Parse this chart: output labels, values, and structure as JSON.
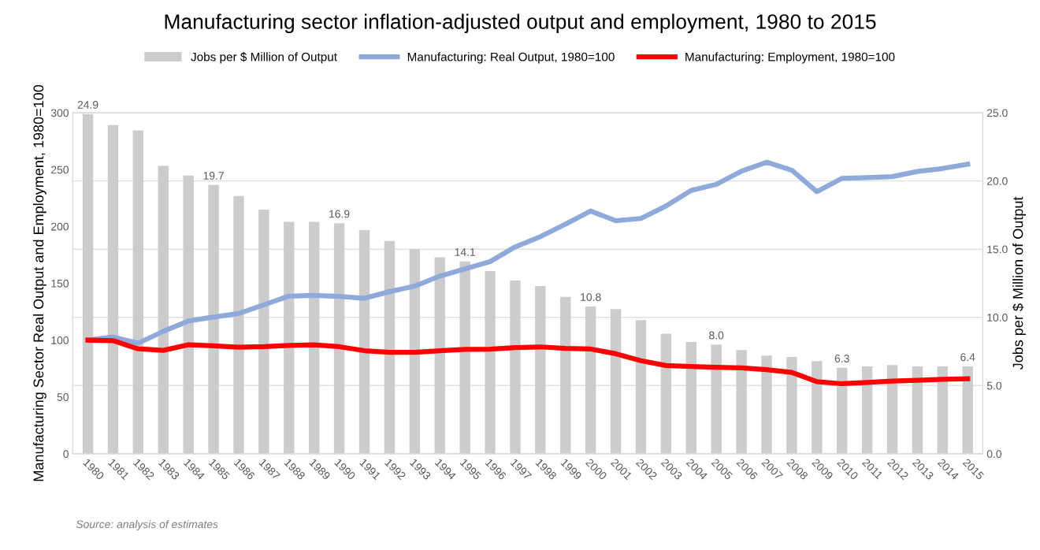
{
  "chart_data": {
    "type": "bar",
    "title": "Manufacturing sector inflation-adjusted output and employment, 1980 to 2015",
    "categories": [
      "1980",
      "1981",
      "1982",
      "1983",
      "1984",
      "1985",
      "1986",
      "1987",
      "1988",
      "1989",
      "1990",
      "1991",
      "1992",
      "1993",
      "1994",
      "1995",
      "1996",
      "1997",
      "1998",
      "1999",
      "2000",
      "2001",
      "2002",
      "2003",
      "2004",
      "2005",
      "2006",
      "2007",
      "2008",
      "2009",
      "2010",
      "2011",
      "2012",
      "2013",
      "2014",
      "2015"
    ],
    "series": [
      {
        "name": "Jobs per $ Million of Output",
        "axis": "y2",
        "color": "#cccccc",
        "values": [
          24.9,
          24.1,
          23.7,
          21.1,
          20.4,
          19.7,
          18.9,
          17.9,
          17.0,
          17.0,
          16.9,
          16.4,
          15.6,
          15.0,
          14.4,
          14.1,
          13.4,
          12.7,
          12.3,
          11.5,
          10.8,
          10.6,
          9.8,
          8.8,
          8.2,
          8.0,
          7.6,
          7.2,
          7.1,
          6.8,
          6.3,
          6.4,
          6.5,
          6.4,
          6.4,
          6.4
        ],
        "value_labels": [
          "24.9",
          null,
          null,
          null,
          null,
          "19.7",
          null,
          null,
          null,
          null,
          "16.9",
          null,
          null,
          null,
          null,
          "14.1",
          null,
          null,
          null,
          null,
          "10.8",
          null,
          null,
          null,
          null,
          "8.0",
          null,
          null,
          null,
          null,
          "6.3",
          null,
          null,
          null,
          null,
          "6.4"
        ]
      },
      {
        "name": "Manufacturing: Real Output, 1980=100",
        "type": "line",
        "color": "#8eaadb",
        "values": [
          100,
          102.7,
          97.3,
          107.7,
          116.8,
          120.3,
          123.4,
          131,
          138.7,
          139.3,
          138.5,
          136.8,
          142.6,
          147.5,
          156.3,
          162.6,
          169,
          182,
          191,
          202,
          213.6,
          205,
          207,
          218,
          231.7,
          237,
          248.6,
          256.5,
          249.5,
          230.5,
          242.3,
          243,
          243.8,
          248.3,
          251,
          254.7
        ]
      },
      {
        "name": "Manufacturing: Employment, 1980=100",
        "type": "line",
        "color": "#ff0000",
        "values": [
          100,
          99.5,
          92.3,
          91,
          95.9,
          95,
          93.7,
          94.2,
          95.3,
          95.9,
          94.2,
          90.7,
          89.3,
          89.3,
          90.7,
          91.8,
          92,
          93.4,
          94,
          92.7,
          92.1,
          88,
          81.9,
          77.6,
          76.7,
          76.1,
          75.5,
          74,
          71.6,
          63.4,
          61.6,
          62.8,
          64,
          64.6,
          65.5,
          65.9
        ]
      }
    ],
    "ylabel": "Manufacturing Sector Real Output and Employment, 1980=100",
    "y2label": "Jobs per $ Million of Output",
    "ylim": [
      0,
      300
    ],
    "yticks": [
      0,
      50,
      100,
      150,
      200,
      250,
      300
    ],
    "y2lim": [
      0,
      25
    ],
    "y2ticks": [
      {
        "value": 0,
        "label": "0.0"
      },
      {
        "value": 5,
        "label": "5.0"
      },
      {
        "value": 10,
        "label": "10.0"
      },
      {
        "value": 15,
        "label": "15.0"
      },
      {
        "value": 20,
        "label": "20.0"
      },
      {
        "value": 25,
        "label": "25.0"
      }
    ],
    "grid": "y",
    "legend": "top",
    "marker": "none",
    "line_style": "solid",
    "annotations": [
      "Source: analysis of estimates"
    ]
  }
}
